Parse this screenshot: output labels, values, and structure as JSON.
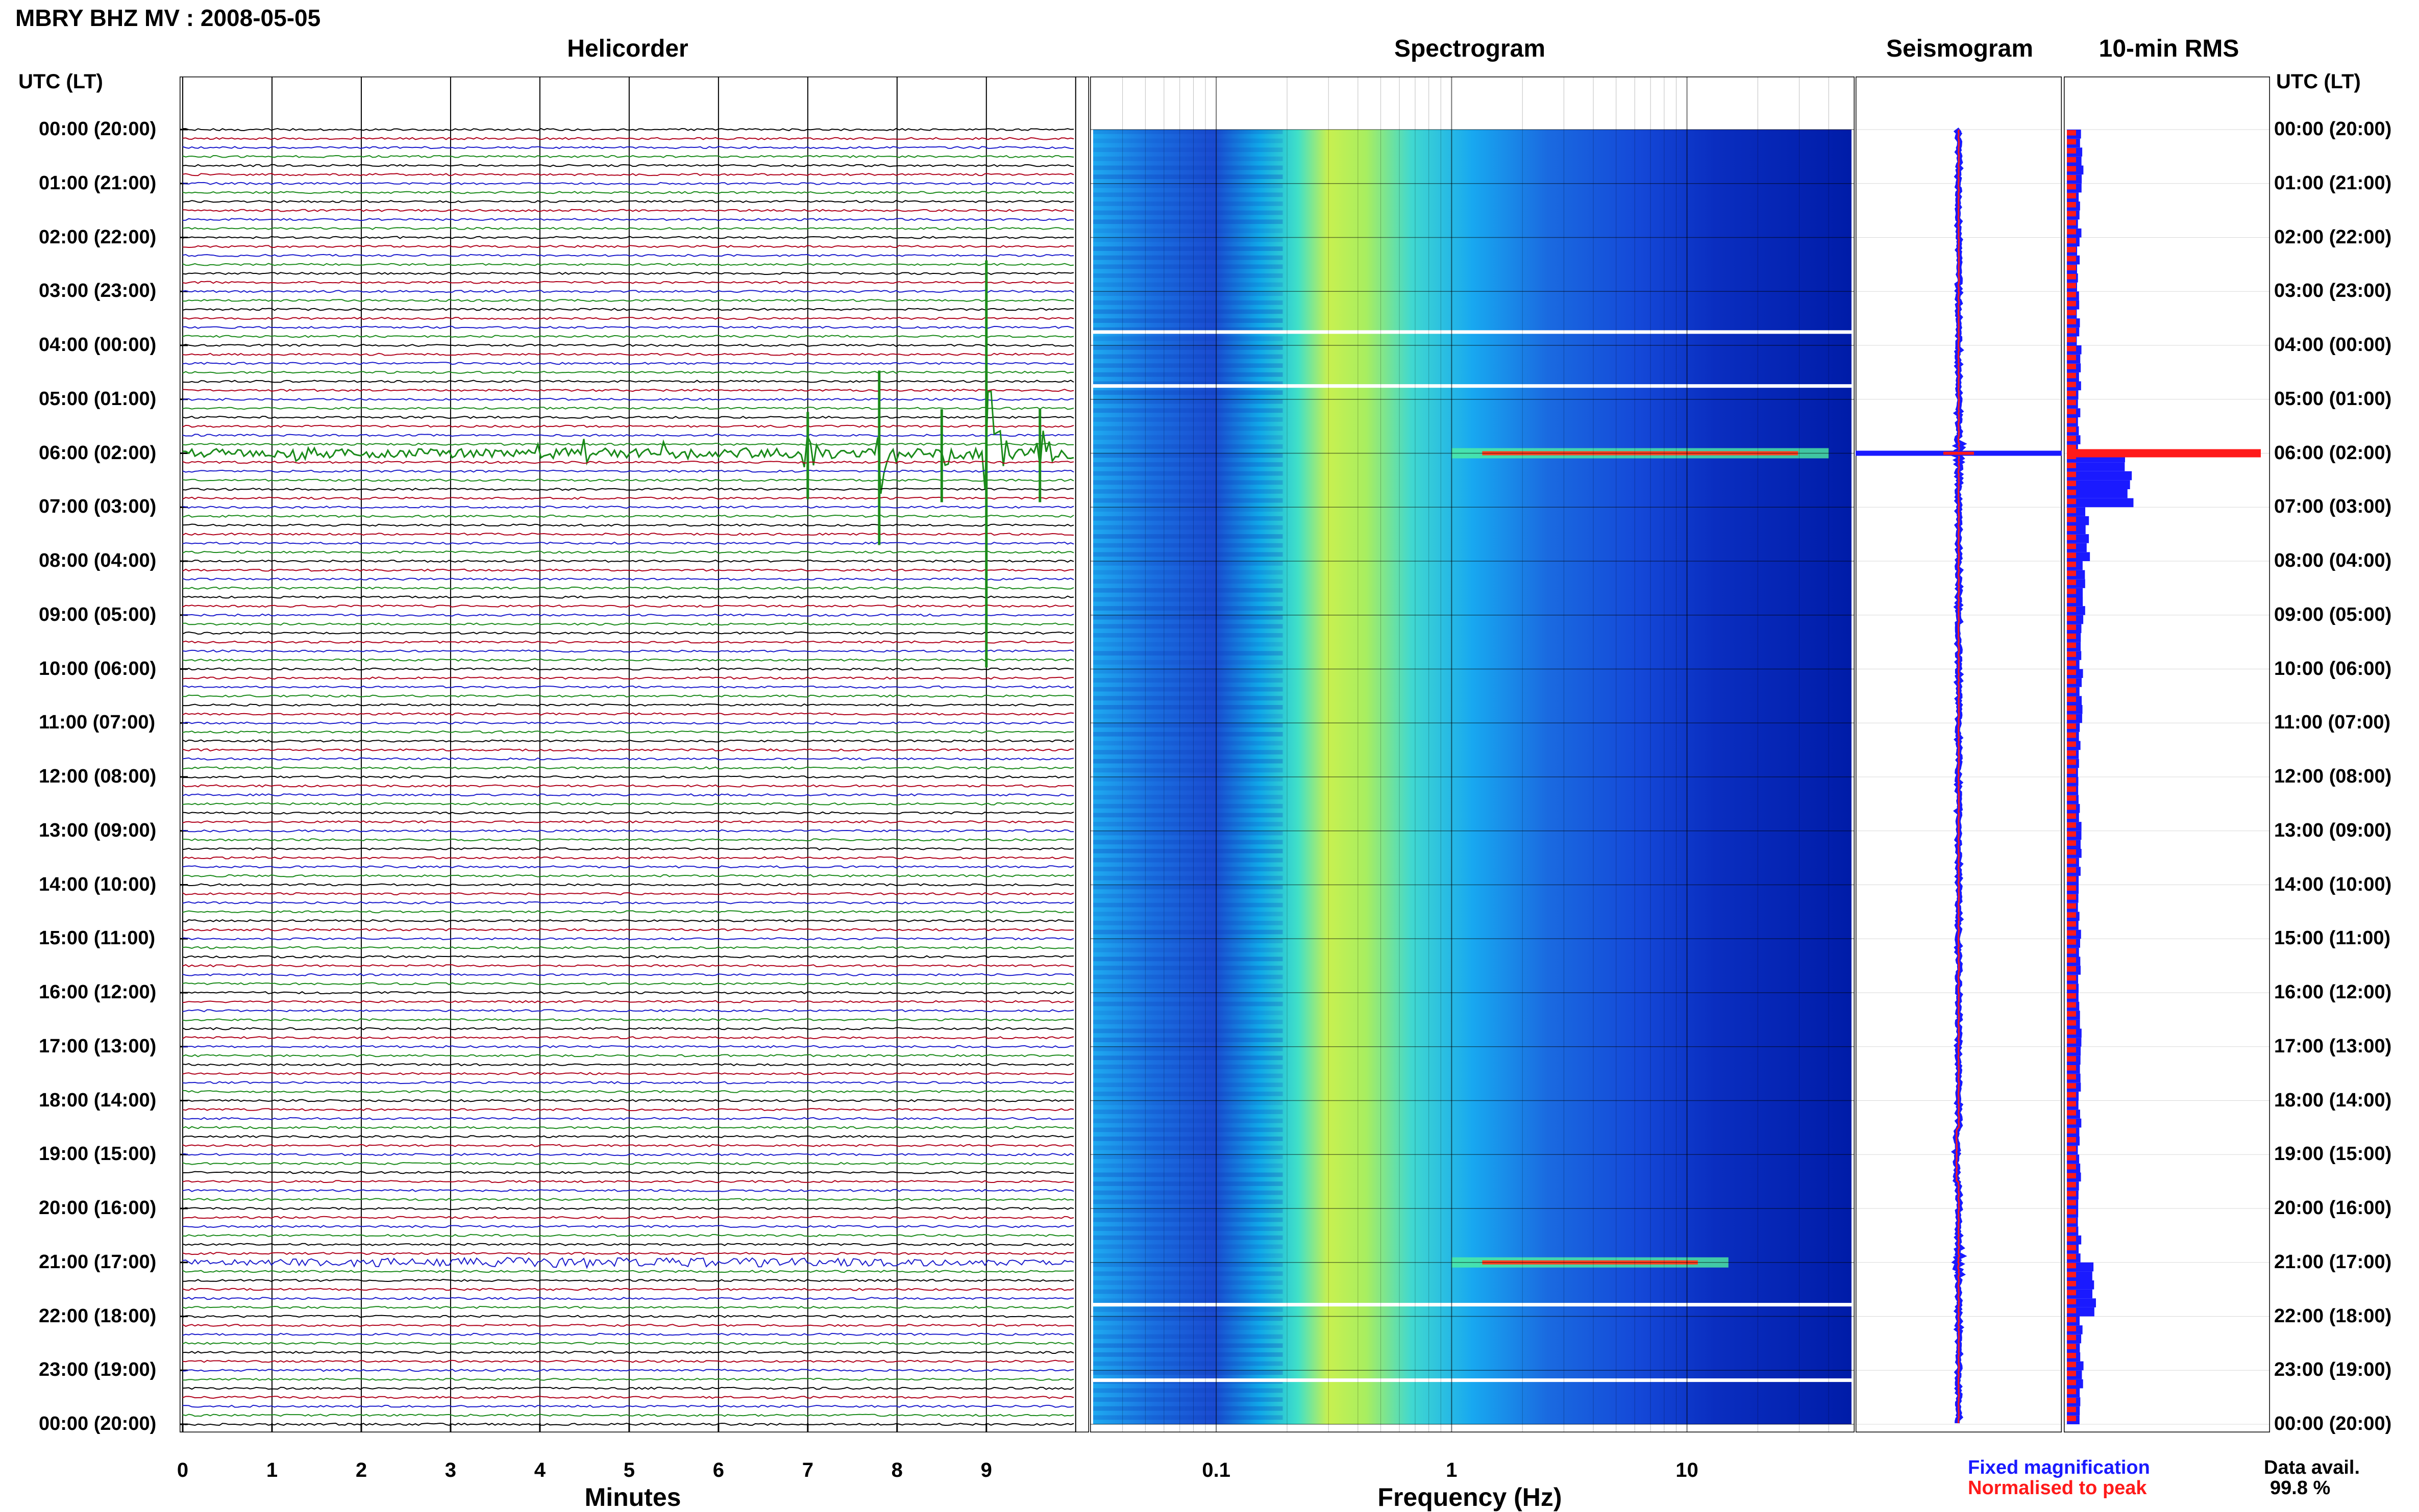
{
  "page": {
    "title": "MBRY BHZ MV : 2008-05-05",
    "time_axis_header": "UTC (LT)",
    "time_labels": [
      "00:00 (20:00)",
      "01:00 (21:00)",
      "02:00 (22:00)",
      "03:00 (23:00)",
      "04:00 (00:00)",
      "05:00 (01:00)",
      "06:00 (02:00)",
      "07:00 (03:00)",
      "08:00 (04:00)",
      "09:00 (05:00)",
      "10:00 (06:00)",
      "11:00 (07:00)",
      "12:00 (08:00)",
      "13:00 (09:00)",
      "14:00 (10:00)",
      "15:00 (11:00)",
      "16:00 (12:00)",
      "17:00 (13:00)",
      "18:00 (14:00)",
      "19:00 (15:00)",
      "20:00 (16:00)",
      "21:00 (17:00)",
      "22:00 (18:00)",
      "23:00 (19:00)",
      "00:00 (20:00)"
    ]
  },
  "panels": {
    "helicorder": {
      "title": "Helicorder",
      "xlabel": "Minutes",
      "ticks": [
        "0",
        "1",
        "2",
        "3",
        "4",
        "5",
        "6",
        "7",
        "8",
        "9"
      ]
    },
    "spectrogram": {
      "title": "Spectrogram",
      "xlabel": "Frequency (Hz)",
      "ticks": [
        "0.1",
        "1",
        "10"
      ]
    },
    "seismogram": {
      "title": "Seismogram"
    },
    "rms": {
      "title": "10-min RMS"
    }
  },
  "legend": {
    "fixed": "Fixed magnification",
    "normalised": "Normalised to peak",
    "avail_label": "Data avail.",
    "avail_value": "99.8 %"
  },
  "colors": {
    "fixed": "#1a1aff",
    "normalised": "#ff1a1a",
    "trace_cycle": [
      "#000000",
      "#b0001a",
      "#1a1acc",
      "#1a8a1a"
    ]
  },
  "chart_data": [
    {
      "type": "line",
      "title": "Helicorder",
      "xlabel": "Minutes",
      "x_range": [
        0,
        10
      ],
      "y_range_hours": [
        0,
        24
      ],
      "rows_per_hour": 6,
      "events": [
        {
          "hour": 6.0,
          "minute": 1.3,
          "amplitude": 0.6
        },
        {
          "hour": 6.0,
          "minute": 4.0,
          "amplitude": 0.7
        },
        {
          "hour": 6.0,
          "minute": 4.5,
          "amplitude": 0.6
        },
        {
          "hour": 6.0,
          "minute": 5.4,
          "amplitude": 0.8
        },
        {
          "hour": 6.0,
          "minute": 6.3,
          "amplitude": 0.6
        },
        {
          "hour": 6.0,
          "minute": 7.0,
          "amplitude": 1.5
        },
        {
          "hour": 6.0,
          "minute": 7.8,
          "amplitude": 3.0
        },
        {
          "hour": 6.0,
          "minute": 8.5,
          "amplitude": 1.6
        },
        {
          "hour": 6.0,
          "minute": 9.0,
          "amplitude": 7.0
        },
        {
          "hour": 6.0,
          "minute": 9.6,
          "amplitude": 1.6
        },
        {
          "hour": 21.0,
          "minute": 4.5,
          "amplitude": 0.15
        }
      ]
    },
    {
      "type": "heatmap",
      "title": "Spectrogram",
      "xlabel": "Frequency (Hz)",
      "x_scale": "log",
      "x_range": [
        0.03,
        50
      ],
      "y_range_hours": [
        0,
        24
      ],
      "peak_frequency_band_hz": [
        0.2,
        0.4
      ],
      "bright_events": [
        {
          "hour": 6.0,
          "freq_range_hz": [
            1,
            40
          ]
        },
        {
          "hour": 21.0,
          "freq_range_hz": [
            1,
            15
          ]
        }
      ]
    },
    {
      "type": "line",
      "title": "Seismogram",
      "y_range_hours": [
        0,
        24
      ],
      "events": [
        {
          "hour": 6.0
        },
        {
          "hour": 21.0
        }
      ]
    },
    {
      "type": "bar",
      "title": "10-min RMS",
      "y_range_hours": [
        0,
        24
      ],
      "series": [
        {
          "name": "Fixed magnification",
          "color": "#1a1aff"
        },
        {
          "name": "Normalised to peak",
          "color": "#ff1a1a"
        }
      ],
      "hourly_relative_values": [
        0.25,
        0.22,
        0.2,
        0.2,
        0.22,
        0.22,
        1.0,
        0.35,
        0.3,
        0.25,
        0.25,
        0.22,
        0.22,
        0.22,
        0.22,
        0.22,
        0.22,
        0.22,
        0.22,
        0.22,
        0.22,
        0.45,
        0.25,
        0.25
      ]
    }
  ]
}
